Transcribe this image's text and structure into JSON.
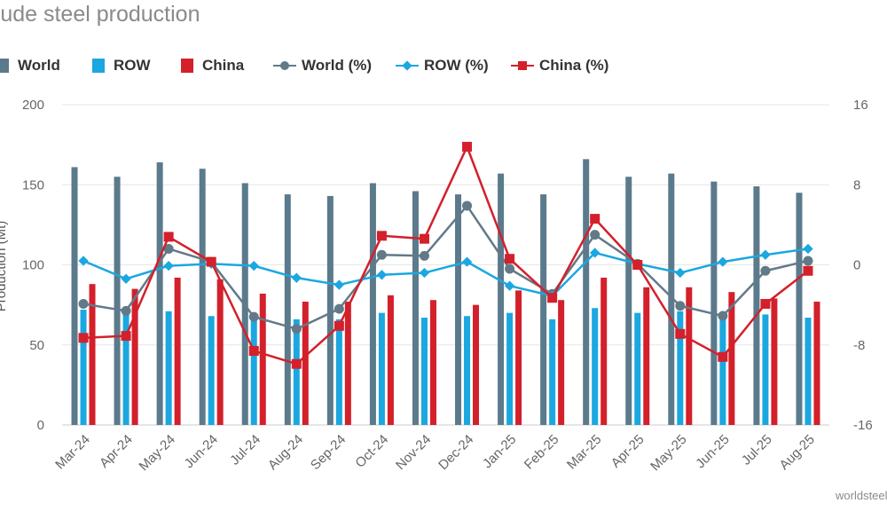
{
  "title": "rude steel production",
  "credit": "worldsteel",
  "colors": {
    "world": "#5b7a8c",
    "row": "#1ba7e0",
    "china": "#d3202b",
    "world_line": "#627a88",
    "row_line": "#1ba7e0",
    "china_line": "#d3202b"
  },
  "legend": [
    {
      "label": "World",
      "type": "bar",
      "color": "#5b7a8c"
    },
    {
      "label": "ROW",
      "type": "bar",
      "color": "#1ba7e0"
    },
    {
      "label": "China",
      "type": "bar",
      "color": "#d3202b"
    },
    {
      "label": "World (%)",
      "type": "line-circle",
      "color": "#627a88"
    },
    {
      "label": "ROW (%)",
      "type": "line-diamond",
      "color": "#1ba7e0"
    },
    {
      "label": "China (%)",
      "type": "line-square",
      "color": "#d3202b"
    }
  ],
  "chart_data": {
    "type": "bar",
    "title": "rude steel production",
    "ylabel": "Production (Mt)",
    "categories": [
      "Mar-24",
      "Apr-24",
      "May-24",
      "Jun-24",
      "Jul-24",
      "Aug-24",
      "Sep-24",
      "Oct-24",
      "Nov-24",
      "Dec-24",
      "Jan-25",
      "Feb-25",
      "Mar-25",
      "Apr-25",
      "May-25",
      "Jun-25",
      "Jul-25",
      "Aug-25"
    ],
    "y_left": {
      "min": 0,
      "max": 200,
      "ticks": [
        0,
        50,
        100,
        150,
        200
      ]
    },
    "y_right": {
      "min": -16,
      "max": 16,
      "ticks": [
        -16,
        -8,
        0,
        8,
        16
      ]
    },
    "series": [
      {
        "name": "World",
        "type": "bar",
        "axis": "left",
        "values": [
          161,
          155,
          164,
          160,
          151,
          144,
          143,
          151,
          146,
          144,
          157,
          144,
          166,
          155,
          157,
          152,
          149,
          145
        ]
      },
      {
        "name": "ROW",
        "type": "bar",
        "axis": "left",
        "values": [
          72,
          71,
          71,
          68,
          68,
          66,
          66,
          70,
          67,
          68,
          70,
          66,
          73,
          70,
          71,
          69,
          69,
          67
        ]
      },
      {
        "name": "China",
        "type": "bar",
        "axis": "left",
        "values": [
          88,
          85,
          92,
          91,
          82,
          77,
          77,
          81,
          78,
          75,
          84,
          78,
          92,
          86,
          86,
          83,
          79,
          77
        ]
      },
      {
        "name": "World (%)",
        "type": "line",
        "axis": "right",
        "values": [
          -3.9,
          -4.6,
          1.6,
          0.3,
          -5.2,
          -6.4,
          -4.4,
          1.0,
          0.9,
          5.9,
          -0.4,
          -2.9,
          3.0,
          0.1,
          -4.1,
          -5.1,
          -0.6,
          0.4
        ]
      },
      {
        "name": "ROW (%)",
        "type": "line",
        "axis": "right",
        "values": [
          0.4,
          -1.4,
          -0.1,
          0.1,
          -0.1,
          -1.3,
          -2.0,
          -1.0,
          -0.8,
          0.3,
          -2.1,
          -3.1,
          1.2,
          0.1,
          -0.8,
          0.3,
          1.0,
          1.6
        ]
      },
      {
        "name": "China (%)",
        "type": "line",
        "axis": "right",
        "values": [
          -7.3,
          -7.1,
          2.8,
          0.3,
          -8.6,
          -9.9,
          -6.1,
          2.9,
          2.6,
          11.8,
          0.6,
          -3.3,
          4.6,
          0.0,
          -6.9,
          -9.2,
          -3.9,
          -0.6
        ]
      }
    ],
    "grid": "horizontal"
  }
}
